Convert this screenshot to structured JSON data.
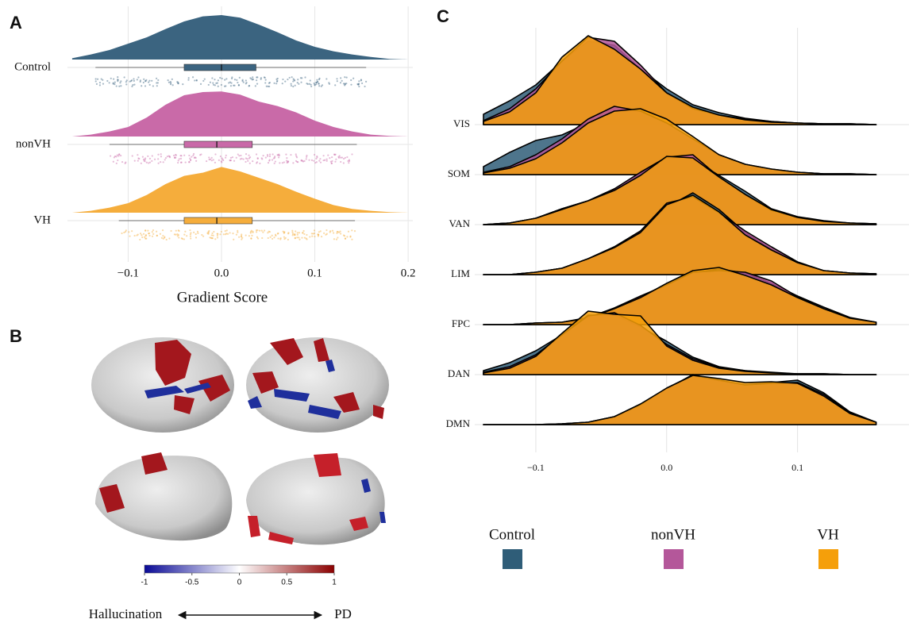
{
  "chart_data": [
    {
      "type": "raincloud",
      "panel": "A",
      "xlabel": "Gradient Score",
      "categories": [
        "Control",
        "nonVH",
        "VH"
      ],
      "colors": [
        "#3b6480",
        "#c96aa8",
        "#f5ad3c"
      ],
      "density_x": [
        -0.16,
        -0.14,
        -0.12,
        -0.1,
        -0.08,
        -0.06,
        -0.04,
        -0.02,
        0,
        0.02,
        0.04,
        0.06,
        0.08,
        0.1,
        0.12,
        0.14,
        0.16,
        0.18,
        0.2
      ],
      "density": [
        [
          0.2,
          0.8,
          1.5,
          2.5,
          3.5,
          4.8,
          6,
          6.8,
          7,
          6.6,
          5.5,
          4.3,
          3,
          2,
          1.3,
          0.8,
          0.4,
          0.1,
          0
        ],
        [
          0,
          0.3,
          0.8,
          1.5,
          3,
          5,
          6.5,
          7,
          7.1,
          6.6,
          5.5,
          4.8,
          3.8,
          2.5,
          1.5,
          0.8,
          0.3,
          0.1,
          0
        ],
        [
          0,
          0.3,
          0.8,
          1.5,
          2.8,
          4.5,
          5.8,
          6.3,
          7.2,
          6.5,
          5.5,
          4.5,
          3.3,
          2.2,
          1.2,
          0.6,
          0.3,
          0.1,
          0
        ]
      ],
      "box": [
        [
          -0.135,
          -0.04,
          0,
          0.037,
          0.155
        ],
        [
          -0.12,
          -0.04,
          -0.005,
          0.033,
          0.145
        ],
        [
          -0.11,
          -0.04,
          -0.005,
          0.033,
          0.143
        ]
      ],
      "xlim": [
        -0.165,
        0.205
      ],
      "xticks": [
        {
          "value": -0.1,
          "label": "−0.1"
        },
        {
          "value": 0,
          "label": "0.0"
        },
        0.1,
        0.2
      ],
      "grid": true
    },
    {
      "type": "colorbar",
      "panel": "B",
      "colors": [
        "#0a0a96",
        "#ffffff",
        "#8b0000"
      ],
      "xlim": [
        -1,
        1
      ],
      "xticks": [
        -1,
        -0.5,
        0,
        0.5,
        1
      ],
      "axis_labels": [
        "Hallucination",
        "PD"
      ]
    },
    {
      "type": "ridgeline",
      "panel": "C",
      "categories": [
        "VIS",
        "SOM",
        "VAN",
        "LIM",
        "FPC",
        "DAN",
        "DMN"
      ],
      "x": [
        -0.14,
        -0.12,
        -0.1,
        -0.08,
        -0.06,
        -0.04,
        -0.02,
        0,
        0.02,
        0.04,
        0.06,
        0.08,
        0.1,
        0.12,
        0.14,
        0.16
      ],
      "series": [
        {
          "name": "Control",
          "color": "#2f5d78",
          "values": [
            [
              1.3,
              3,
              5,
              8,
              10.5,
              10,
              7,
              4.5,
              2.5,
              1.5,
              0.8,
              0.4,
              0.2,
              0.1,
              0.1,
              0
            ],
            [
              1,
              2.8,
              4.3,
              5,
              6.5,
              8,
              8,
              6.5,
              4.5,
              2.5,
              1.3,
              0.6,
              0.3,
              0.1,
              0.1,
              0
            ],
            [
              0,
              0.2,
              0.8,
              2,
              3,
              4.5,
              6.5,
              8.4,
              8.2,
              6.2,
              4.2,
              2,
              1,
              0.5,
              0.2,
              0.1
            ],
            [
              0,
              0,
              0.3,
              0.8,
              2,
              3.5,
              5.5,
              8.5,
              10.3,
              8.2,
              5.3,
              3.2,
              1.5,
              0.5,
              0.2,
              0.1
            ],
            [
              0,
              0,
              0.2,
              0.3,
              0.8,
              2,
              3.5,
              5,
              6.5,
              7,
              6.5,
              5.2,
              3.6,
              2.2,
              0.9,
              0.3
            ],
            [
              0.5,
              1.5,
              3,
              5,
              7.5,
              7.5,
              6,
              4.2,
              2.2,
              1,
              0.5,
              0.3,
              0.1,
              0.1,
              0,
              0
            ],
            [
              0,
              0,
              0,
              0.1,
              0.3,
              1,
              2.5,
              4.5,
              6.3,
              5.5,
              5,
              5.3,
              5.6,
              4,
              1.6,
              0.3
            ]
          ]
        },
        {
          "name": "nonVH",
          "color": "#b4579a",
          "values": [
            [
              0.5,
              2,
              4.5,
              8,
              11,
              10.5,
              7.5,
              4,
              2,
              1.2,
              0.7,
              0.4,
              0.2,
              0.1,
              0.1,
              0
            ],
            [
              0.3,
              1,
              2.5,
              4.5,
              7,
              8.6,
              8,
              6.5,
              4.5,
              2.5,
              1.3,
              0.7,
              0.3,
              0.1,
              0.1,
              0
            ],
            [
              0,
              0.2,
              0.8,
              2,
              3,
              4.5,
              6.6,
              8.5,
              8.8,
              6,
              3.8,
              1.8,
              0.9,
              0.4,
              0.2,
              0.1
            ],
            [
              0,
              0,
              0.3,
              0.8,
              2,
              3.5,
              5.5,
              9,
              9.8,
              7.8,
              5.5,
              3.5,
              1.6,
              0.5,
              0.2,
              0.1
            ],
            [
              0,
              0,
              0.2,
              0.3,
              0.9,
              2.1,
              3.6,
              5,
              6.6,
              6.8,
              6.6,
              5.5,
              3.5,
              2,
              0.8,
              0.3
            ],
            [
              0.3,
              1,
              2.5,
              5,
              7.4,
              7.8,
              6.2,
              3.8,
              2,
              0.9,
              0.5,
              0.2,
              0.1,
              0.1,
              0,
              0
            ],
            [
              0,
              0,
              0,
              0.1,
              0.3,
              1,
              2.5,
              4.6,
              6.2,
              5.6,
              5,
              5.2,
              5.3,
              3.8,
              1.5,
              0.3
            ]
          ]
        },
        {
          "name": "VH",
          "color": "#f59f0a",
          "values": [
            [
              0.4,
              1.6,
              4,
              8.5,
              11.2,
              9.5,
              7,
              4,
              2.2,
              1.2,
              0.6,
              0.3,
              0.2,
              0.1,
              0.1,
              0
            ],
            [
              0.2,
              0.8,
              2,
              4,
              6.5,
              8,
              8.3,
              7,
              4.8,
              2.5,
              1.3,
              0.7,
              0.3,
              0.1,
              0.1,
              0
            ],
            [
              0,
              0.2,
              0.8,
              1.9,
              3,
              4.3,
              6.2,
              8.6,
              8.4,
              6,
              3.8,
              1.9,
              0.9,
              0.4,
              0.2,
              0.1
            ],
            [
              0,
              0,
              0.3,
              0.8,
              2,
              3.4,
              5.3,
              8.8,
              10,
              7.9,
              5,
              3.1,
              1.5,
              0.5,
              0.2,
              0.1
            ],
            [
              0,
              0,
              0.2,
              0.3,
              0.8,
              2,
              3.4,
              5.2,
              6.8,
              7.2,
              6.2,
              5,
              3.4,
              2,
              0.8,
              0.3
            ],
            [
              0.2,
              0.8,
              2.3,
              5.2,
              8,
              7.6,
              7.4,
              3.6,
              1.8,
              0.8,
              0.4,
              0.2,
              0.1,
              0.1,
              0,
              0
            ],
            [
              0,
              0,
              0,
              0.1,
              0.3,
              1,
              2.6,
              4.6,
              6.2,
              5.8,
              5.3,
              5.4,
              5.2,
              3.6,
              1.4,
              0.3
            ]
          ]
        }
      ],
      "xlim": [
        -0.14,
        0.17
      ],
      "xticks": [
        {
          "value": -0.1,
          "label": "−0.1"
        },
        {
          "value": 0,
          "label": "0.0"
        },
        0.1
      ],
      "grid": true,
      "legend": "bottom"
    }
  ]
}
